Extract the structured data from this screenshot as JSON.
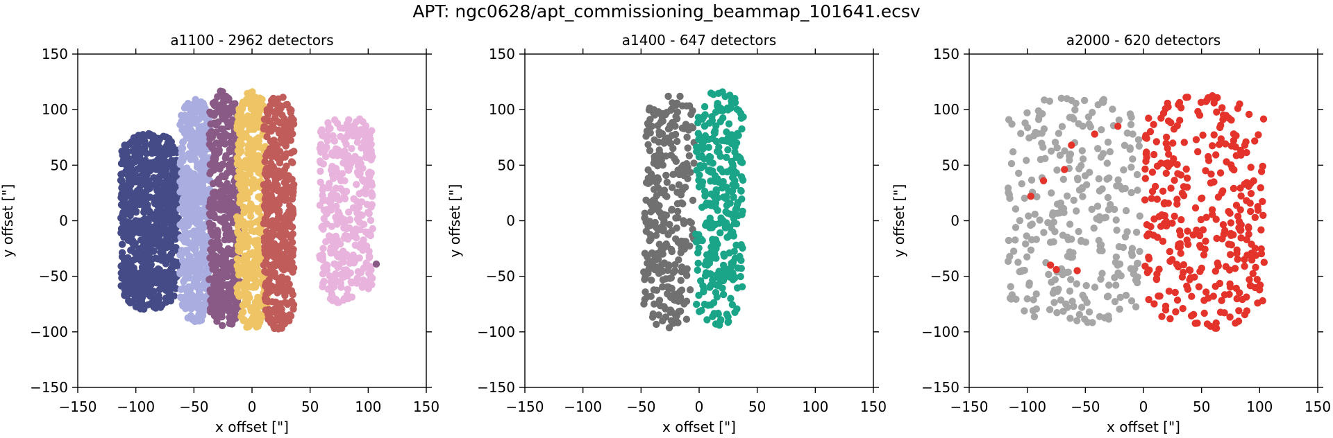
{
  "figure": {
    "title": "APT: ngc0628/apt_commissioning_beammap_101641.ecsv"
  },
  "chart_data": [
    {
      "type": "scatter",
      "title": "a1100 - 2962 detectors",
      "xlabel": "x offset [\"]",
      "ylabel": "y offset [\"]",
      "xlim": [
        -150,
        150
      ],
      "ylim": [
        -150,
        150
      ],
      "xticks": [
        -150,
        -100,
        -50,
        0,
        50,
        100,
        150
      ],
      "yticks": [
        -150,
        -100,
        -50,
        0,
        50,
        100,
        150
      ],
      "grid": false,
      "legend": "none",
      "series": [
        {
          "color": "#444b87",
          "x_range": [
            -113,
            -63
          ],
          "y_range": [
            -80,
            80
          ],
          "count": 760
        },
        {
          "color": "#a9addf",
          "x_range": [
            -62,
            -36
          ],
          "y_range": [
            -93,
            110
          ],
          "count": 520
        },
        {
          "color": "#8a5a86",
          "x_range": [
            -37,
            -10
          ],
          "y_range": [
            -98,
            117
          ],
          "count": 470
        },
        {
          "color": "#eec464",
          "x_range": [
            -13,
            13
          ],
          "y_range": [
            -97,
            118
          ],
          "count": 430
        },
        {
          "color": "#c05c5a",
          "x_range": [
            10,
            36
          ],
          "y_range": [
            -98,
            112
          ],
          "count": 420
        },
        {
          "color": "#e8b3dc",
          "x_range": [
            58,
            104
          ],
          "y_range": [
            -75,
            95
          ],
          "count": 360
        }
      ],
      "annotations": [
        {
          "color": "#8a5a86",
          "x": 107,
          "y": -39
        }
      ]
    },
    {
      "type": "scatter",
      "title": "a1400 - 647 detectors",
      "xlabel": "x offset [\"]",
      "ylabel": "y offset [\"]",
      "xlim": [
        -150,
        150
      ],
      "ylim": [
        -150,
        150
      ],
      "xticks": [
        -150,
        -100,
        -50,
        0,
        50,
        100,
        150
      ],
      "yticks": [
        -150,
        -100,
        -50,
        0,
        50,
        100,
        150
      ],
      "grid": false,
      "legend": "none",
      "series": [
        {
          "color": "#707070",
          "x_range": [
            -48,
            -4
          ],
          "y_range": [
            -97,
            117
          ],
          "count": 330
        },
        {
          "color": "#1aa488",
          "x_range": [
            -3,
            38
          ],
          "y_range": [
            -95,
            117
          ],
          "count": 317
        }
      ]
    },
    {
      "type": "scatter",
      "title": "a2000 - 620 detectors",
      "xlabel": "x offset [\"]",
      "ylabel": "y offset [\"]",
      "xlim": [
        -150,
        150
      ],
      "ylim": [
        -150,
        150
      ],
      "xticks": [
        -150,
        -100,
        -50,
        0,
        50,
        100,
        150
      ],
      "yticks": [
        -150,
        -100,
        -50,
        0,
        50,
        100,
        150
      ],
      "grid": false,
      "legend": "none",
      "series": [
        {
          "color": "#a6a6a6",
          "x_range": [
            -117,
            -3
          ],
          "y_range": [
            -95,
            112
          ],
          "count": 290
        },
        {
          "color": "#e3332a",
          "x_range": [
            0,
            104
          ],
          "y_range": [
            -97,
            113
          ],
          "count": 330
        }
      ],
      "annotations": [
        {
          "color": "#e3332a",
          "x": -80,
          "y": -40
        },
        {
          "color": "#e3332a",
          "x": -75,
          "y": -44
        },
        {
          "color": "#e3332a",
          "x": -57,
          "y": -45
        },
        {
          "color": "#e3332a",
          "x": -62,
          "y": 68
        },
        {
          "color": "#e3332a",
          "x": -42,
          "y": 78
        },
        {
          "color": "#e3332a",
          "x": -68,
          "y": 46
        },
        {
          "color": "#e3332a",
          "x": -86,
          "y": 36
        },
        {
          "color": "#e3332a",
          "x": -97,
          "y": 22
        },
        {
          "color": "#e3332a",
          "x": -22,
          "y": 85
        }
      ]
    }
  ]
}
